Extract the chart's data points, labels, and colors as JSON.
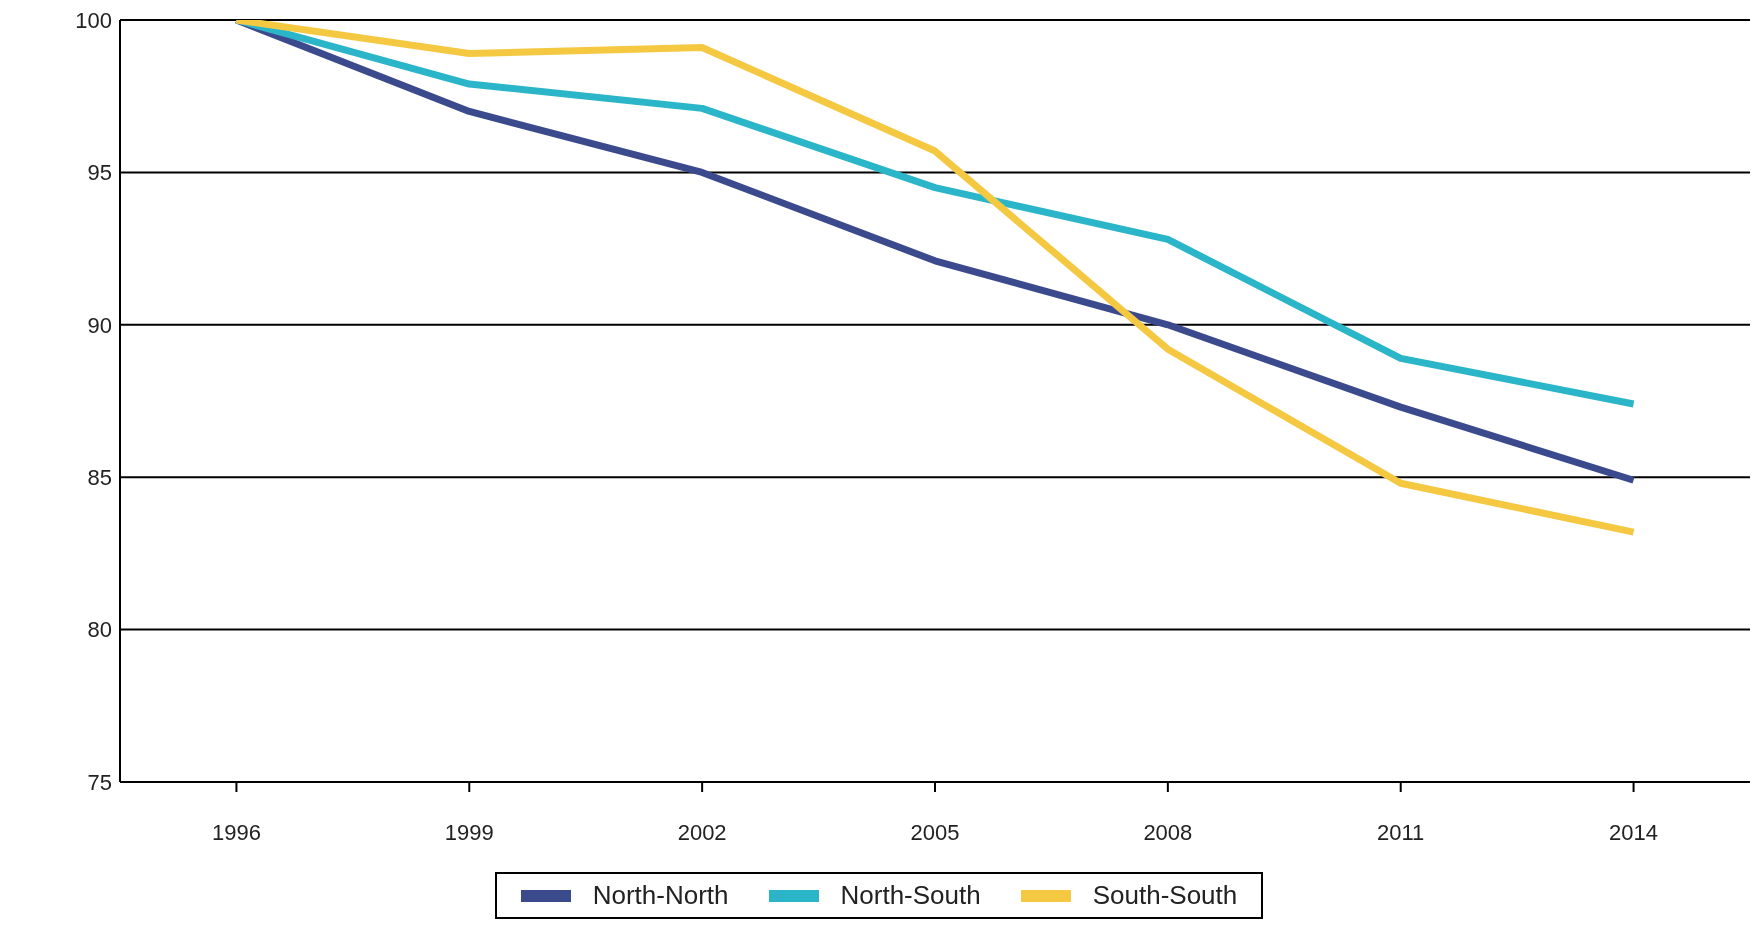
{
  "chart_data": {
    "type": "line",
    "categories": [
      "1996",
      "1999",
      "2002",
      "2005",
      "2008",
      "2011",
      "2014"
    ],
    "series": [
      {
        "name": "North-North",
        "color": "#3b4a8c",
        "values": [
          100,
          97.0,
          95.0,
          92.1,
          90.0,
          87.3,
          84.9
        ]
      },
      {
        "name": "North-South",
        "color": "#2bb5c9",
        "values": [
          100,
          97.9,
          97.1,
          94.5,
          92.8,
          88.9,
          87.4
        ]
      },
      {
        "name": "South-South",
        "color": "#f5c842",
        "values": [
          100,
          98.9,
          99.1,
          95.7,
          89.2,
          84.8,
          83.2
        ]
      }
    ],
    "ylim": [
      75,
      100
    ],
    "yticks": [
      75,
      80,
      85,
      90,
      95,
      100
    ],
    "grid": "y",
    "legend": "bottom",
    "marker": "none",
    "line_style": "solid"
  }
}
